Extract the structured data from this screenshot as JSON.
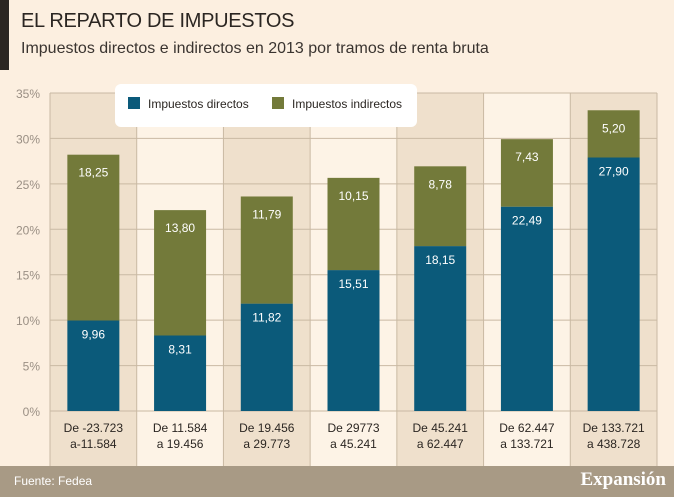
{
  "title": "EL REPARTO DE IMPUESTOS",
  "subtitle": "Impuestos directos e indirectos en 2013 por tramos de renta bruta",
  "source": "Fuente: Fedea",
  "logo": "Expansión",
  "chart_data": {
    "type": "bar",
    "stacked": true,
    "categories": [
      [
        "De -23.723",
        "a-11.584"
      ],
      [
        "De 11.584",
        "a 19.456"
      ],
      [
        "De 19.456",
        "a 29.773"
      ],
      [
        "De 29773",
        "a 45.241"
      ],
      [
        "De 45.241",
        "a 62.447"
      ],
      [
        "De 62.447",
        "a 133.721"
      ],
      [
        "De 133.721",
        "a 438.728"
      ]
    ],
    "series": [
      {
        "name": "Impuestos directos",
        "color": "#0b5a7a",
        "values": [
          9.96,
          8.31,
          11.82,
          15.51,
          18.15,
          22.49,
          27.9
        ],
        "labels": [
          "9,96",
          "8,31",
          "11,82",
          "15,51",
          "18,15",
          "22,49",
          "27,90"
        ]
      },
      {
        "name": "Impuestos indirectos",
        "color": "#737a3a",
        "values": [
          18.25,
          13.8,
          11.79,
          10.15,
          8.78,
          7.43,
          5.2
        ],
        "labels": [
          "18,25",
          "13,80",
          "11,79",
          "10,15",
          "8,78",
          "7,43",
          "5,20"
        ]
      }
    ],
    "ylim": [
      0,
      35
    ],
    "yticks": [
      "0%",
      "5%",
      "10%",
      "15%",
      "20%",
      "25%",
      "30%",
      "35%"
    ],
    "grid": true,
    "legend": "top"
  }
}
